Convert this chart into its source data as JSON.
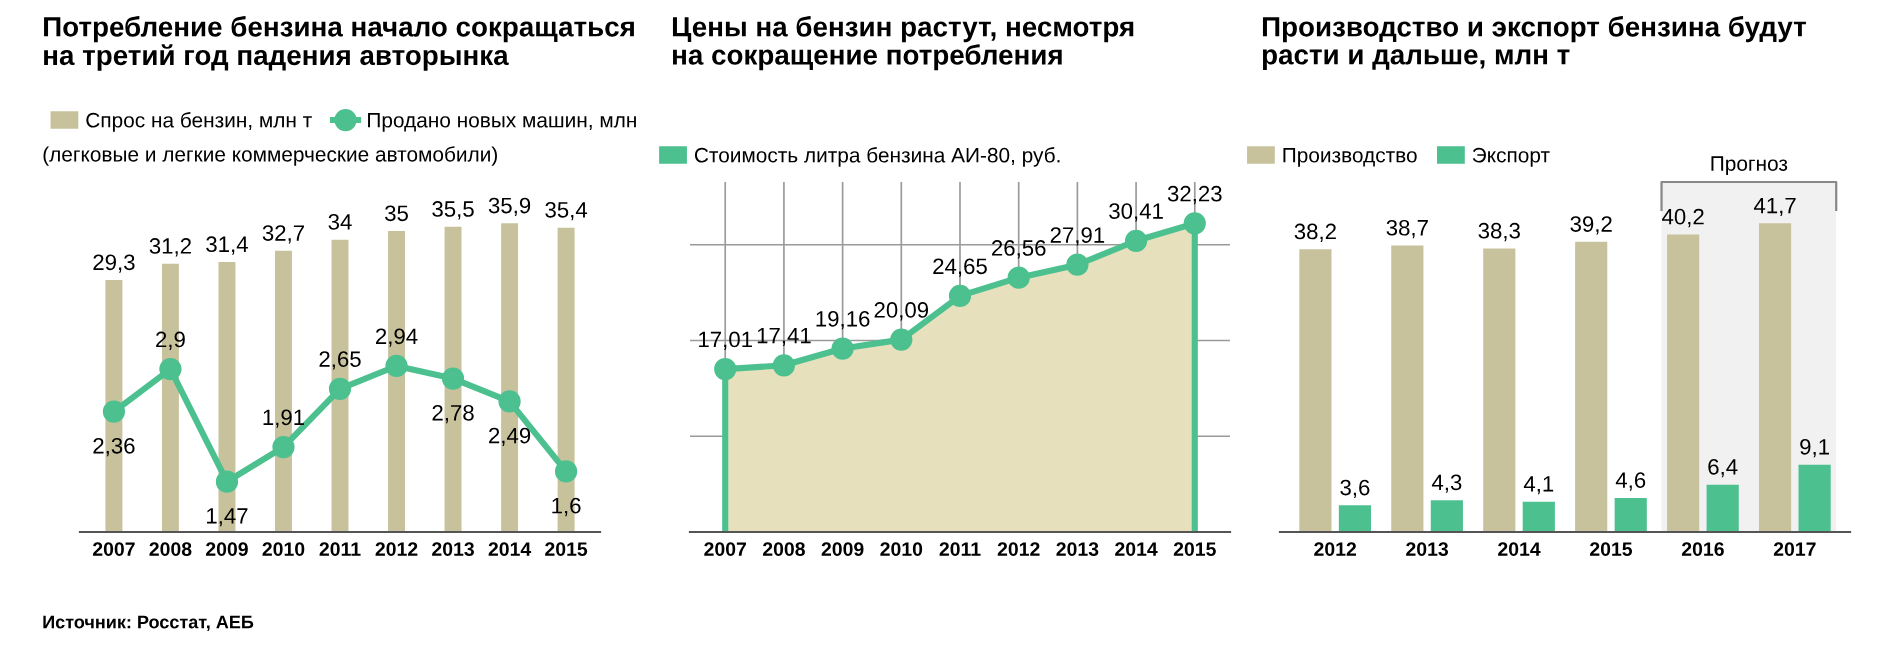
{
  "chart_data": [
    {
      "type": "bar",
      "title": "Потребление бензина начало сокращаться\nна третий год падения авторынка",
      "categories": [
        "2007",
        "2008",
        "2009",
        "2010",
        "2011",
        "2012",
        "2013",
        "2014",
        "2015"
      ],
      "series": [
        {
          "name": "Спрос на бензин, млн т",
          "color": "#c8c29c",
          "values": [
            29.3,
            31.2,
            31.4,
            32.7,
            34,
            35,
            35.5,
            35.9,
            35.4
          ],
          "value_labels": [
            "29,3",
            "31,2",
            "31,4",
            "32,7",
            "34",
            "35",
            "35,5",
            "35,9",
            "35,4"
          ]
        },
        {
          "name": "Продано новых машин, млн",
          "type": "line",
          "axis": "y2",
          "color": "#4cc08f",
          "values": [
            2.36,
            2.9,
            1.47,
            1.91,
            2.65,
            2.94,
            2.78,
            2.49,
            1.6
          ],
          "value_labels": [
            "2,36",
            "2,9",
            "1,47",
            "1,91",
            "2,65",
            "2,94",
            "2,78",
            "2,49",
            "1,6"
          ]
        }
      ],
      "legend": "top left",
      "marker": "circle",
      "tick_labels": "x",
      "grid": false,
      "annotations": [
        "(легковые и легкие коммерческие автомобили)",
        "Источник: Росстат, АЕБ"
      ]
    },
    {
      "type": "area",
      "title": "Цены на бензин растут, несмотря\nна сокращение потребления",
      "categories": [
        "2007",
        "2008",
        "2009",
        "2010",
        "2011",
        "2012",
        "2013",
        "2014",
        "2015"
      ],
      "series": [
        {
          "name": "Стоимость литра бензина АИ-80, руб.",
          "color": "#4cc08f",
          "values": [
            17.01,
            17.41,
            19.16,
            20.09,
            24.65,
            26.56,
            27.91,
            30.41,
            32.23
          ],
          "value_labels": [
            "17,01",
            "17,41",
            "19,16",
            "20,09",
            "24,65",
            "26,56",
            "27,91",
            "30,41",
            "32,23"
          ]
        }
      ],
      "legend": "top left",
      "marker": "circle",
      "tick_labels": "x",
      "grid": true
    },
    {
      "type": "bar",
      "title": "Производство и экспорт бензина будут\nрасти и дальше, млн т",
      "categories": [
        "2012",
        "2013",
        "2014",
        "2015",
        "2016",
        "2017"
      ],
      "series": [
        {
          "name": "Производство",
          "color": "#c8c29c",
          "values": [
            38.2,
            38.7,
            38.3,
            39.2,
            40.2,
            41.7
          ],
          "value_labels": [
            "38,2",
            "38,7",
            "38,3",
            "39,2",
            "40,2",
            "41,7"
          ]
        },
        {
          "name": "Экспорт",
          "color": "#4cc08f",
          "values": [
            3.6,
            4.3,
            4.1,
            4.6,
            6.4,
            9.1
          ],
          "value_labels": [
            "3,6",
            "4,3",
            "4,1",
            "4,6",
            "6,4",
            "9,1"
          ]
        }
      ],
      "bands": [
        {
          "axis": "x",
          "from": "2016",
          "to": "2017",
          "label": "Прогноз"
        }
      ],
      "legend": "top left",
      "tick_labels": "x",
      "grid": false
    }
  ]
}
